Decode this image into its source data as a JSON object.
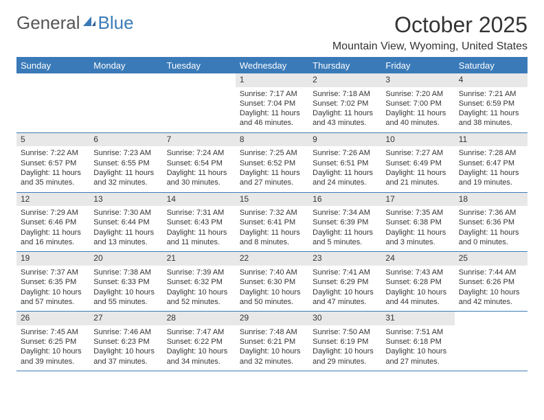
{
  "logo": {
    "part1": "General",
    "part2": "Blue"
  },
  "title": "October 2025",
  "location": "Mountain View, Wyoming, United States",
  "colors": {
    "accent": "#3a7ab8",
    "dayshade": "#e8e8e8",
    "text": "#333333",
    "bg": "#ffffff"
  },
  "dayNames": [
    "Sunday",
    "Monday",
    "Tuesday",
    "Wednesday",
    "Thursday",
    "Friday",
    "Saturday"
  ],
  "weeks": [
    [
      null,
      null,
      null,
      {
        "n": "1",
        "sunrise": "7:17 AM",
        "sunset": "7:04 PM",
        "dlh": "11",
        "dlm": "46"
      },
      {
        "n": "2",
        "sunrise": "7:18 AM",
        "sunset": "7:02 PM",
        "dlh": "11",
        "dlm": "43"
      },
      {
        "n": "3",
        "sunrise": "7:20 AM",
        "sunset": "7:00 PM",
        "dlh": "11",
        "dlm": "40"
      },
      {
        "n": "4",
        "sunrise": "7:21 AM",
        "sunset": "6:59 PM",
        "dlh": "11",
        "dlm": "38"
      }
    ],
    [
      {
        "n": "5",
        "sunrise": "7:22 AM",
        "sunset": "6:57 PM",
        "dlh": "11",
        "dlm": "35"
      },
      {
        "n": "6",
        "sunrise": "7:23 AM",
        "sunset": "6:55 PM",
        "dlh": "11",
        "dlm": "32"
      },
      {
        "n": "7",
        "sunrise": "7:24 AM",
        "sunset": "6:54 PM",
        "dlh": "11",
        "dlm": "30"
      },
      {
        "n": "8",
        "sunrise": "7:25 AM",
        "sunset": "6:52 PM",
        "dlh": "11",
        "dlm": "27"
      },
      {
        "n": "9",
        "sunrise": "7:26 AM",
        "sunset": "6:51 PM",
        "dlh": "11",
        "dlm": "24"
      },
      {
        "n": "10",
        "sunrise": "7:27 AM",
        "sunset": "6:49 PM",
        "dlh": "11",
        "dlm": "21"
      },
      {
        "n": "11",
        "sunrise": "7:28 AM",
        "sunset": "6:47 PM",
        "dlh": "11",
        "dlm": "19"
      }
    ],
    [
      {
        "n": "12",
        "sunrise": "7:29 AM",
        "sunset": "6:46 PM",
        "dlh": "11",
        "dlm": "16"
      },
      {
        "n": "13",
        "sunrise": "7:30 AM",
        "sunset": "6:44 PM",
        "dlh": "11",
        "dlm": "13"
      },
      {
        "n": "14",
        "sunrise": "7:31 AM",
        "sunset": "6:43 PM",
        "dlh": "11",
        "dlm": "11"
      },
      {
        "n": "15",
        "sunrise": "7:32 AM",
        "sunset": "6:41 PM",
        "dlh": "11",
        "dlm": "8"
      },
      {
        "n": "16",
        "sunrise": "7:34 AM",
        "sunset": "6:39 PM",
        "dlh": "11",
        "dlm": "5"
      },
      {
        "n": "17",
        "sunrise": "7:35 AM",
        "sunset": "6:38 PM",
        "dlh": "11",
        "dlm": "3"
      },
      {
        "n": "18",
        "sunrise": "7:36 AM",
        "sunset": "6:36 PM",
        "dlh": "11",
        "dlm": "0"
      }
    ],
    [
      {
        "n": "19",
        "sunrise": "7:37 AM",
        "sunset": "6:35 PM",
        "dlh": "10",
        "dlm": "57"
      },
      {
        "n": "20",
        "sunrise": "7:38 AM",
        "sunset": "6:33 PM",
        "dlh": "10",
        "dlm": "55"
      },
      {
        "n": "21",
        "sunrise": "7:39 AM",
        "sunset": "6:32 PM",
        "dlh": "10",
        "dlm": "52"
      },
      {
        "n": "22",
        "sunrise": "7:40 AM",
        "sunset": "6:30 PM",
        "dlh": "10",
        "dlm": "50"
      },
      {
        "n": "23",
        "sunrise": "7:41 AM",
        "sunset": "6:29 PM",
        "dlh": "10",
        "dlm": "47"
      },
      {
        "n": "24",
        "sunrise": "7:43 AM",
        "sunset": "6:28 PM",
        "dlh": "10",
        "dlm": "44"
      },
      {
        "n": "25",
        "sunrise": "7:44 AM",
        "sunset": "6:26 PM",
        "dlh": "10",
        "dlm": "42"
      }
    ],
    [
      {
        "n": "26",
        "sunrise": "7:45 AM",
        "sunset": "6:25 PM",
        "dlh": "10",
        "dlm": "39"
      },
      {
        "n": "27",
        "sunrise": "7:46 AM",
        "sunset": "6:23 PM",
        "dlh": "10",
        "dlm": "37"
      },
      {
        "n": "28",
        "sunrise": "7:47 AM",
        "sunset": "6:22 PM",
        "dlh": "10",
        "dlm": "34"
      },
      {
        "n": "29",
        "sunrise": "7:48 AM",
        "sunset": "6:21 PM",
        "dlh": "10",
        "dlm": "32"
      },
      {
        "n": "30",
        "sunrise": "7:50 AM",
        "sunset": "6:19 PM",
        "dlh": "10",
        "dlm": "29"
      },
      {
        "n": "31",
        "sunrise": "7:51 AM",
        "sunset": "6:18 PM",
        "dlh": "10",
        "dlm": "27"
      },
      null
    ]
  ]
}
